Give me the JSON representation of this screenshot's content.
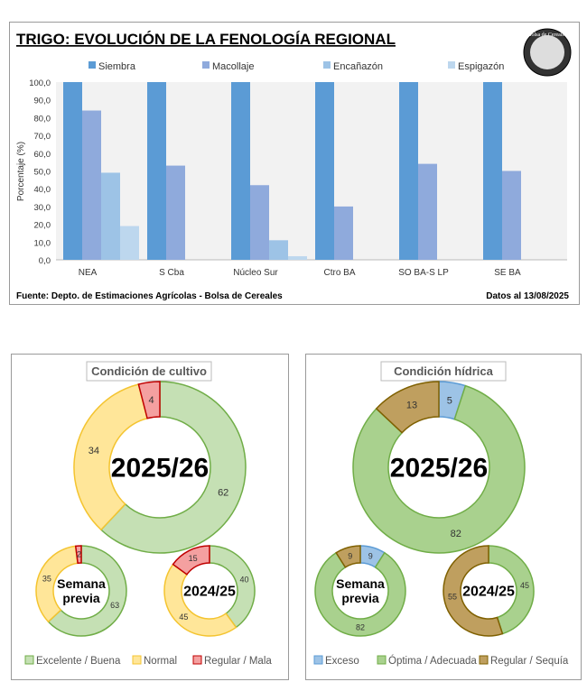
{
  "colors": {
    "siembra": "#5b9bd5",
    "macollaje": "#8faadc",
    "encanazon": "#9dc3e6",
    "espigazon": "#bdd7ee",
    "excelente": "#c5e0b4",
    "excelente_border": "#70ad47",
    "normal": "#ffe699",
    "normal_border": "#f4c430",
    "regular": "#f4a0a0",
    "regular_border": "#c00000",
    "exceso": "#9dc3e6",
    "optima": "#a9d18e",
    "sequia": "#bf9f5f",
    "sequia_border": "#7f6000"
  },
  "logo_text": "Bolsa de Cereales",
  "chart_data": [
    {
      "type": "bar",
      "title": "TRIGO: EVOLUCIÓN DE LA FENOLOGÍA REGIONAL",
      "ylabel": "Porcentaje (%)",
      "xlabel": "",
      "ylim": [
        0,
        100
      ],
      "yticks": [
        "0,0",
        "10,0",
        "20,0",
        "30,0",
        "40,0",
        "50,0",
        "60,0",
        "70,0",
        "80,0",
        "90,0",
        "100,0"
      ],
      "categories": [
        "NEA",
        "S Cba",
        "Núcleo Sur",
        "Ctro BA",
        "SO BA-S LP",
        "SE BA"
      ],
      "series": [
        {
          "name": "Siembra",
          "values": [
            100,
            100,
            100,
            100,
            100,
            100
          ]
        },
        {
          "name": "Macollaje",
          "values": [
            84,
            53,
            42,
            30,
            54,
            50
          ]
        },
        {
          "name": "Encañazón",
          "values": [
            49,
            0,
            11,
            0,
            0,
            0
          ]
        },
        {
          "name": "Espigazón",
          "values": [
            19,
            0,
            2,
            0,
            0,
            0
          ]
        }
      ],
      "legend": "top",
      "source": "Fuente: Depto. de Estimaciones Agrícolas - Bolsa de Cereales",
      "date": "Datos al 13/08/2025"
    },
    {
      "type": "pie",
      "title": "Condición de cultivo",
      "legend": [
        "Excelente / Buena",
        "Normal",
        "Regular / Mala"
      ],
      "donuts": [
        {
          "label": "2025/26",
          "values": [
            62,
            34,
            4
          ]
        },
        {
          "label": "Semana previa",
          "values": [
            63,
            35,
            2
          ]
        },
        {
          "label": "2024/25",
          "values": [
            40,
            45,
            15
          ]
        }
      ]
    },
    {
      "type": "pie",
      "title": "Condición hídrica",
      "legend": [
        "Exceso",
        "Óptima / Adecuada",
        "Regular / Sequía"
      ],
      "donuts": [
        {
          "label": "2025/26",
          "values": [
            5,
            82,
            13
          ]
        },
        {
          "label": "Semana previa",
          "values": [
            9,
            82,
            9
          ]
        },
        {
          "label": "2024/25",
          "values": [
            0,
            45,
            55
          ]
        }
      ]
    }
  ]
}
